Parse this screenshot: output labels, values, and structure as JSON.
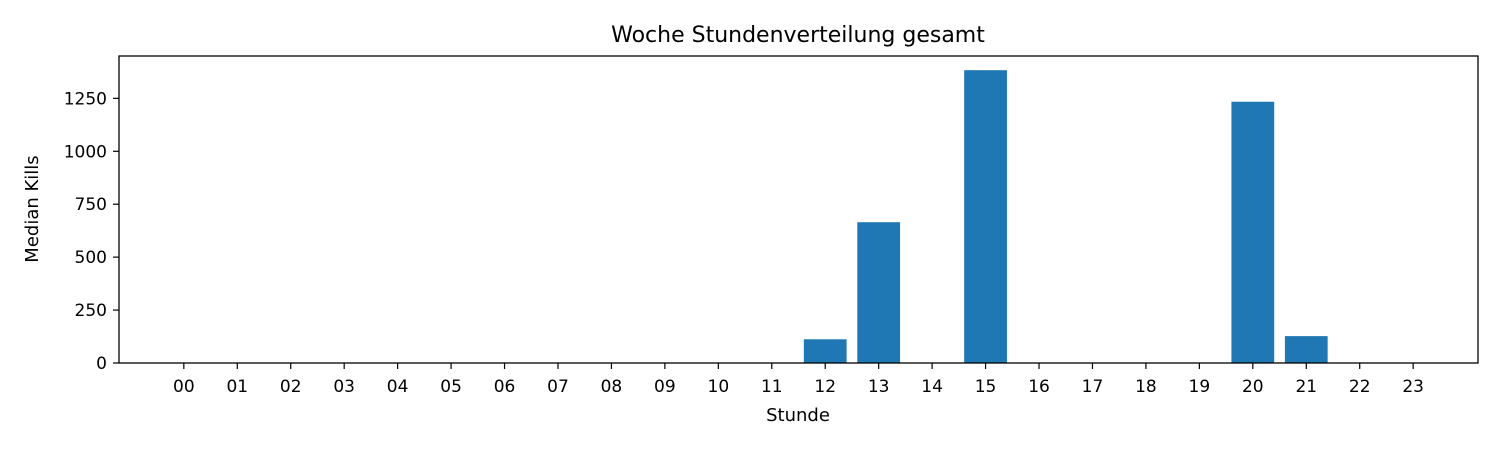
{
  "chart_data": {
    "type": "bar",
    "title": "Woche Stundenverteilung gesamt",
    "xlabel": "Stunde",
    "ylabel": "Median Kills",
    "categories": [
      "00",
      "01",
      "02",
      "03",
      "04",
      "05",
      "06",
      "07",
      "08",
      "09",
      "10",
      "11",
      "12",
      "13",
      "14",
      "15",
      "16",
      "17",
      "18",
      "19",
      "20",
      "21",
      "22",
      "23"
    ],
    "values": [
      0,
      0,
      0,
      0,
      0,
      0,
      0,
      0,
      0,
      0,
      0,
      0,
      112,
      665,
      0,
      1383,
      0,
      0,
      0,
      0,
      1234,
      127,
      0,
      0
    ],
    "ylim": [
      0,
      1450
    ],
    "yticks": [
      0,
      250,
      500,
      750,
      1000,
      1250
    ],
    "bar_color": "#1f77b4",
    "grid": false,
    "legend": "none"
  }
}
